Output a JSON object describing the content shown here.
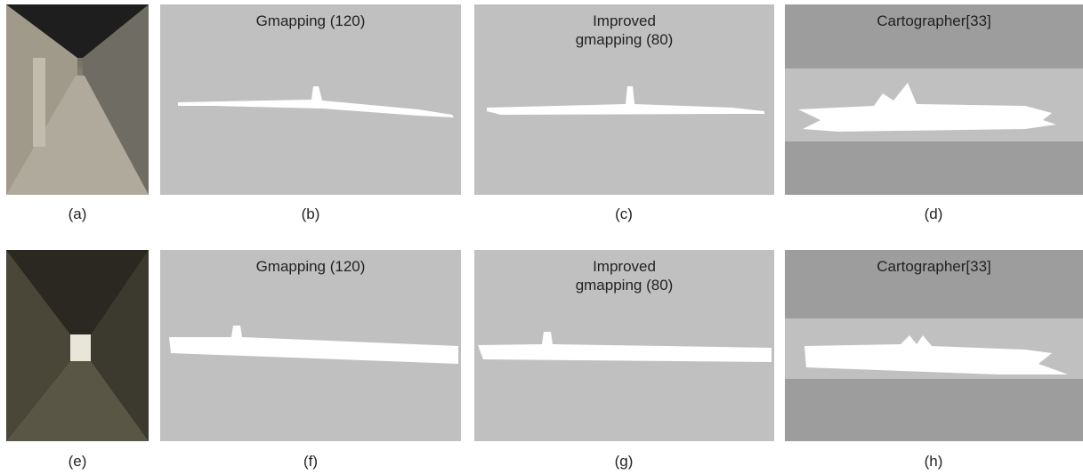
{
  "panels": [
    {
      "label": "(a)"
    },
    {
      "label": "(b)",
      "title": "Gmapping (120)"
    },
    {
      "label": "(c)",
      "title": "Improved gmapping (80)"
    },
    {
      "label": "(d)",
      "title": "Cartographer[33]"
    },
    {
      "label": "(e)"
    },
    {
      "label": "(f)",
      "title": "Gmapping (120)"
    },
    {
      "label": "(g)",
      "title": "Improved gmapping (80)"
    },
    {
      "label": "(h)",
      "title": "Cartographer[33]"
    }
  ]
}
